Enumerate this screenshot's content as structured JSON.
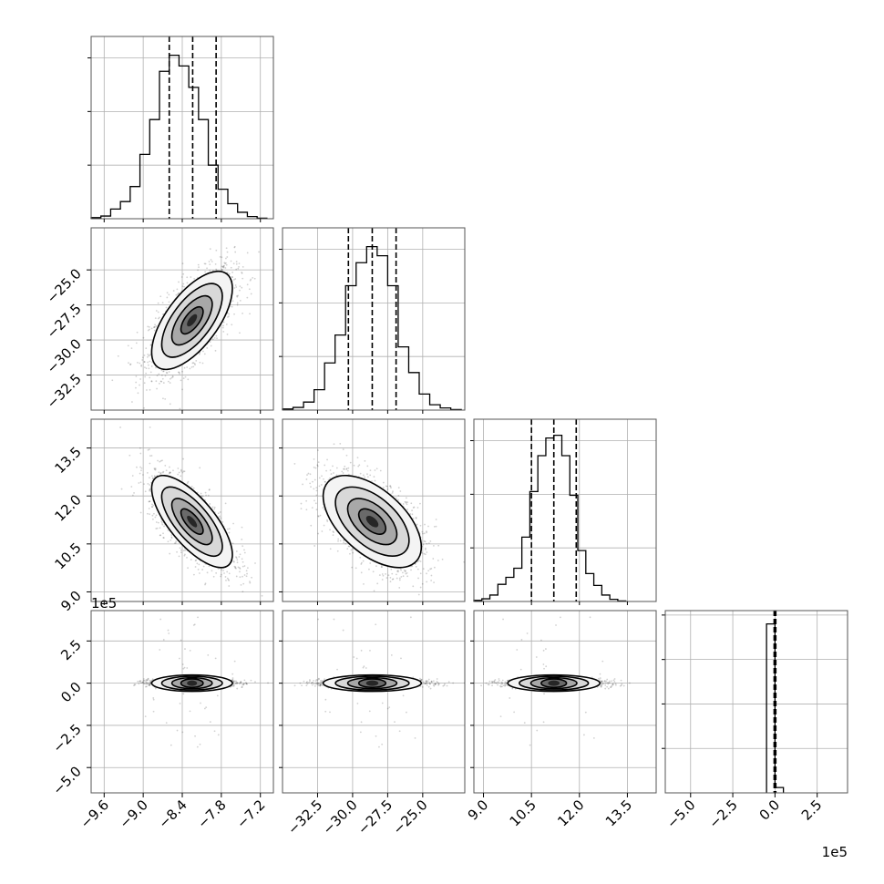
{
  "chart_data": {
    "type": "corner",
    "grid": true,
    "colors": {
      "data": "#000000",
      "grid": "#b0b0b0",
      "frame": "#555555"
    },
    "quantiles_style": "dashed",
    "variables": [
      {
        "range": [
          -9.8,
          -7.0
        ],
        "ticks": [
          -9.6,
          -9.0,
          -8.4,
          -7.8,
          -7.2
        ],
        "tick_labels": [
          "−9.6",
          "−9.0",
          "−8.4",
          "−7.8",
          "−7.2"
        ],
        "hist_ticks": [
          1,
          2,
          3
        ],
        "hist_max": 3.4,
        "quantiles": [
          -8.6,
          -8.24,
          -7.88
        ],
        "hist_edges": [
          -9.8,
          -9.65,
          -9.5,
          -9.35,
          -9.2,
          -9.05,
          -8.9,
          -8.75,
          -8.6,
          -8.45,
          -8.3,
          -8.15,
          -8.0,
          -7.85,
          -7.7,
          -7.55,
          -7.4,
          -7.25,
          -7.1
        ],
        "hist_counts": [
          0.02,
          0.05,
          0.18,
          0.32,
          0.6,
          1.2,
          1.85,
          2.75,
          3.05,
          2.85,
          2.45,
          1.85,
          1.0,
          0.55,
          0.28,
          0.12,
          0.04,
          0.01
        ],
        "exponent": ""
      },
      {
        "range": [
          -35.0,
          -22.0
        ],
        "ticks": [
          -32.5,
          -30.0,
          -27.5,
          -25.0
        ],
        "tick_labels": [
          "−32.5",
          "−30.0",
          "−27.5",
          "−25.0"
        ],
        "hist_ticks": [
          1,
          2,
          3
        ],
        "hist_max": 3.4,
        "quantiles": [
          -30.3,
          -28.6,
          -26.9
        ],
        "hist_edges": [
          -35.0,
          -34.25,
          -33.5,
          -32.75,
          -32.0,
          -31.25,
          -30.5,
          -29.75,
          -29.0,
          -28.25,
          -27.5,
          -26.75,
          -26.0,
          -25.25,
          -24.5,
          -23.75,
          -23.0,
          -22.25
        ],
        "hist_counts": [
          0.02,
          0.05,
          0.15,
          0.38,
          0.88,
          1.4,
          2.32,
          2.75,
          3.05,
          2.88,
          2.32,
          1.18,
          0.7,
          0.3,
          0.1,
          0.04,
          0.01
        ],
        "exponent": ""
      },
      {
        "range": [
          8.7,
          14.4
        ],
        "ticks": [
          9.0,
          10.5,
          12.0,
          13.5
        ],
        "tick_labels": [
          "9.0",
          "10.5",
          "12.0",
          "13.5"
        ],
        "hist_ticks": [
          1,
          2,
          3
        ],
        "hist_max": 3.4,
        "quantiles": [
          10.5,
          11.2,
          11.9
        ],
        "hist_edges": [
          8.7,
          8.95,
          9.2,
          9.45,
          9.7,
          9.95,
          10.2,
          10.45,
          10.7,
          10.95,
          11.2,
          11.45,
          11.7,
          11.95,
          12.2,
          12.45,
          12.7,
          12.95,
          13.2,
          13.45
        ],
        "hist_counts": [
          0.02,
          0.05,
          0.12,
          0.32,
          0.45,
          0.62,
          1.2,
          2.05,
          2.72,
          3.05,
          3.1,
          2.72,
          1.98,
          0.95,
          0.52,
          0.3,
          0.12,
          0.04,
          0.01
        ],
        "exponent": ""
      },
      {
        "range": [
          -6.5,
          4.3
        ],
        "ticks": [
          -5.0,
          -2.5,
          0.0,
          2.5
        ],
        "tick_labels": [
          "−5.0",
          "−2.5",
          "0.0",
          "2.5"
        ],
        "hist_ticks": [
          1,
          2,
          3,
          4
        ],
        "hist_max": 4.1,
        "quantiles": [
          -0.05,
          0.0,
          0.05
        ],
        "hist_edges": [
          -0.5,
          0.0,
          0.5
        ],
        "hist_counts": [
          3.8,
          0.12
        ],
        "exponent": "1e5"
      }
    ],
    "pairs": [
      {
        "row": 1,
        "col": 0,
        "mean": [
          -8.25,
          -28.6
        ],
        "sd": [
          0.31,
          1.75
        ],
        "rho": 0.65
      },
      {
        "row": 2,
        "col": 0,
        "mean": [
          -8.25,
          11.2
        ],
        "sd": [
          0.31,
          0.72
        ],
        "rho": -0.72
      },
      {
        "row": 2,
        "col": 1,
        "mean": [
          -28.6,
          11.2
        ],
        "sd": [
          1.75,
          0.72
        ],
        "rho": -0.55
      },
      {
        "row": 3,
        "col": 0,
        "mean": [
          -8.25,
          0.0
        ],
        "sd": [
          0.31,
          0.12
        ],
        "rho": 0.0
      },
      {
        "row": 3,
        "col": 1,
        "mean": [
          -28.6,
          0.0
        ],
        "sd": [
          1.75,
          0.12
        ],
        "rho": 0.0
      },
      {
        "row": 3,
        "col": 2,
        "mean": [
          11.2,
          0.0
        ],
        "sd": [
          0.72,
          0.12
        ],
        "rho": 0.0
      }
    ]
  }
}
